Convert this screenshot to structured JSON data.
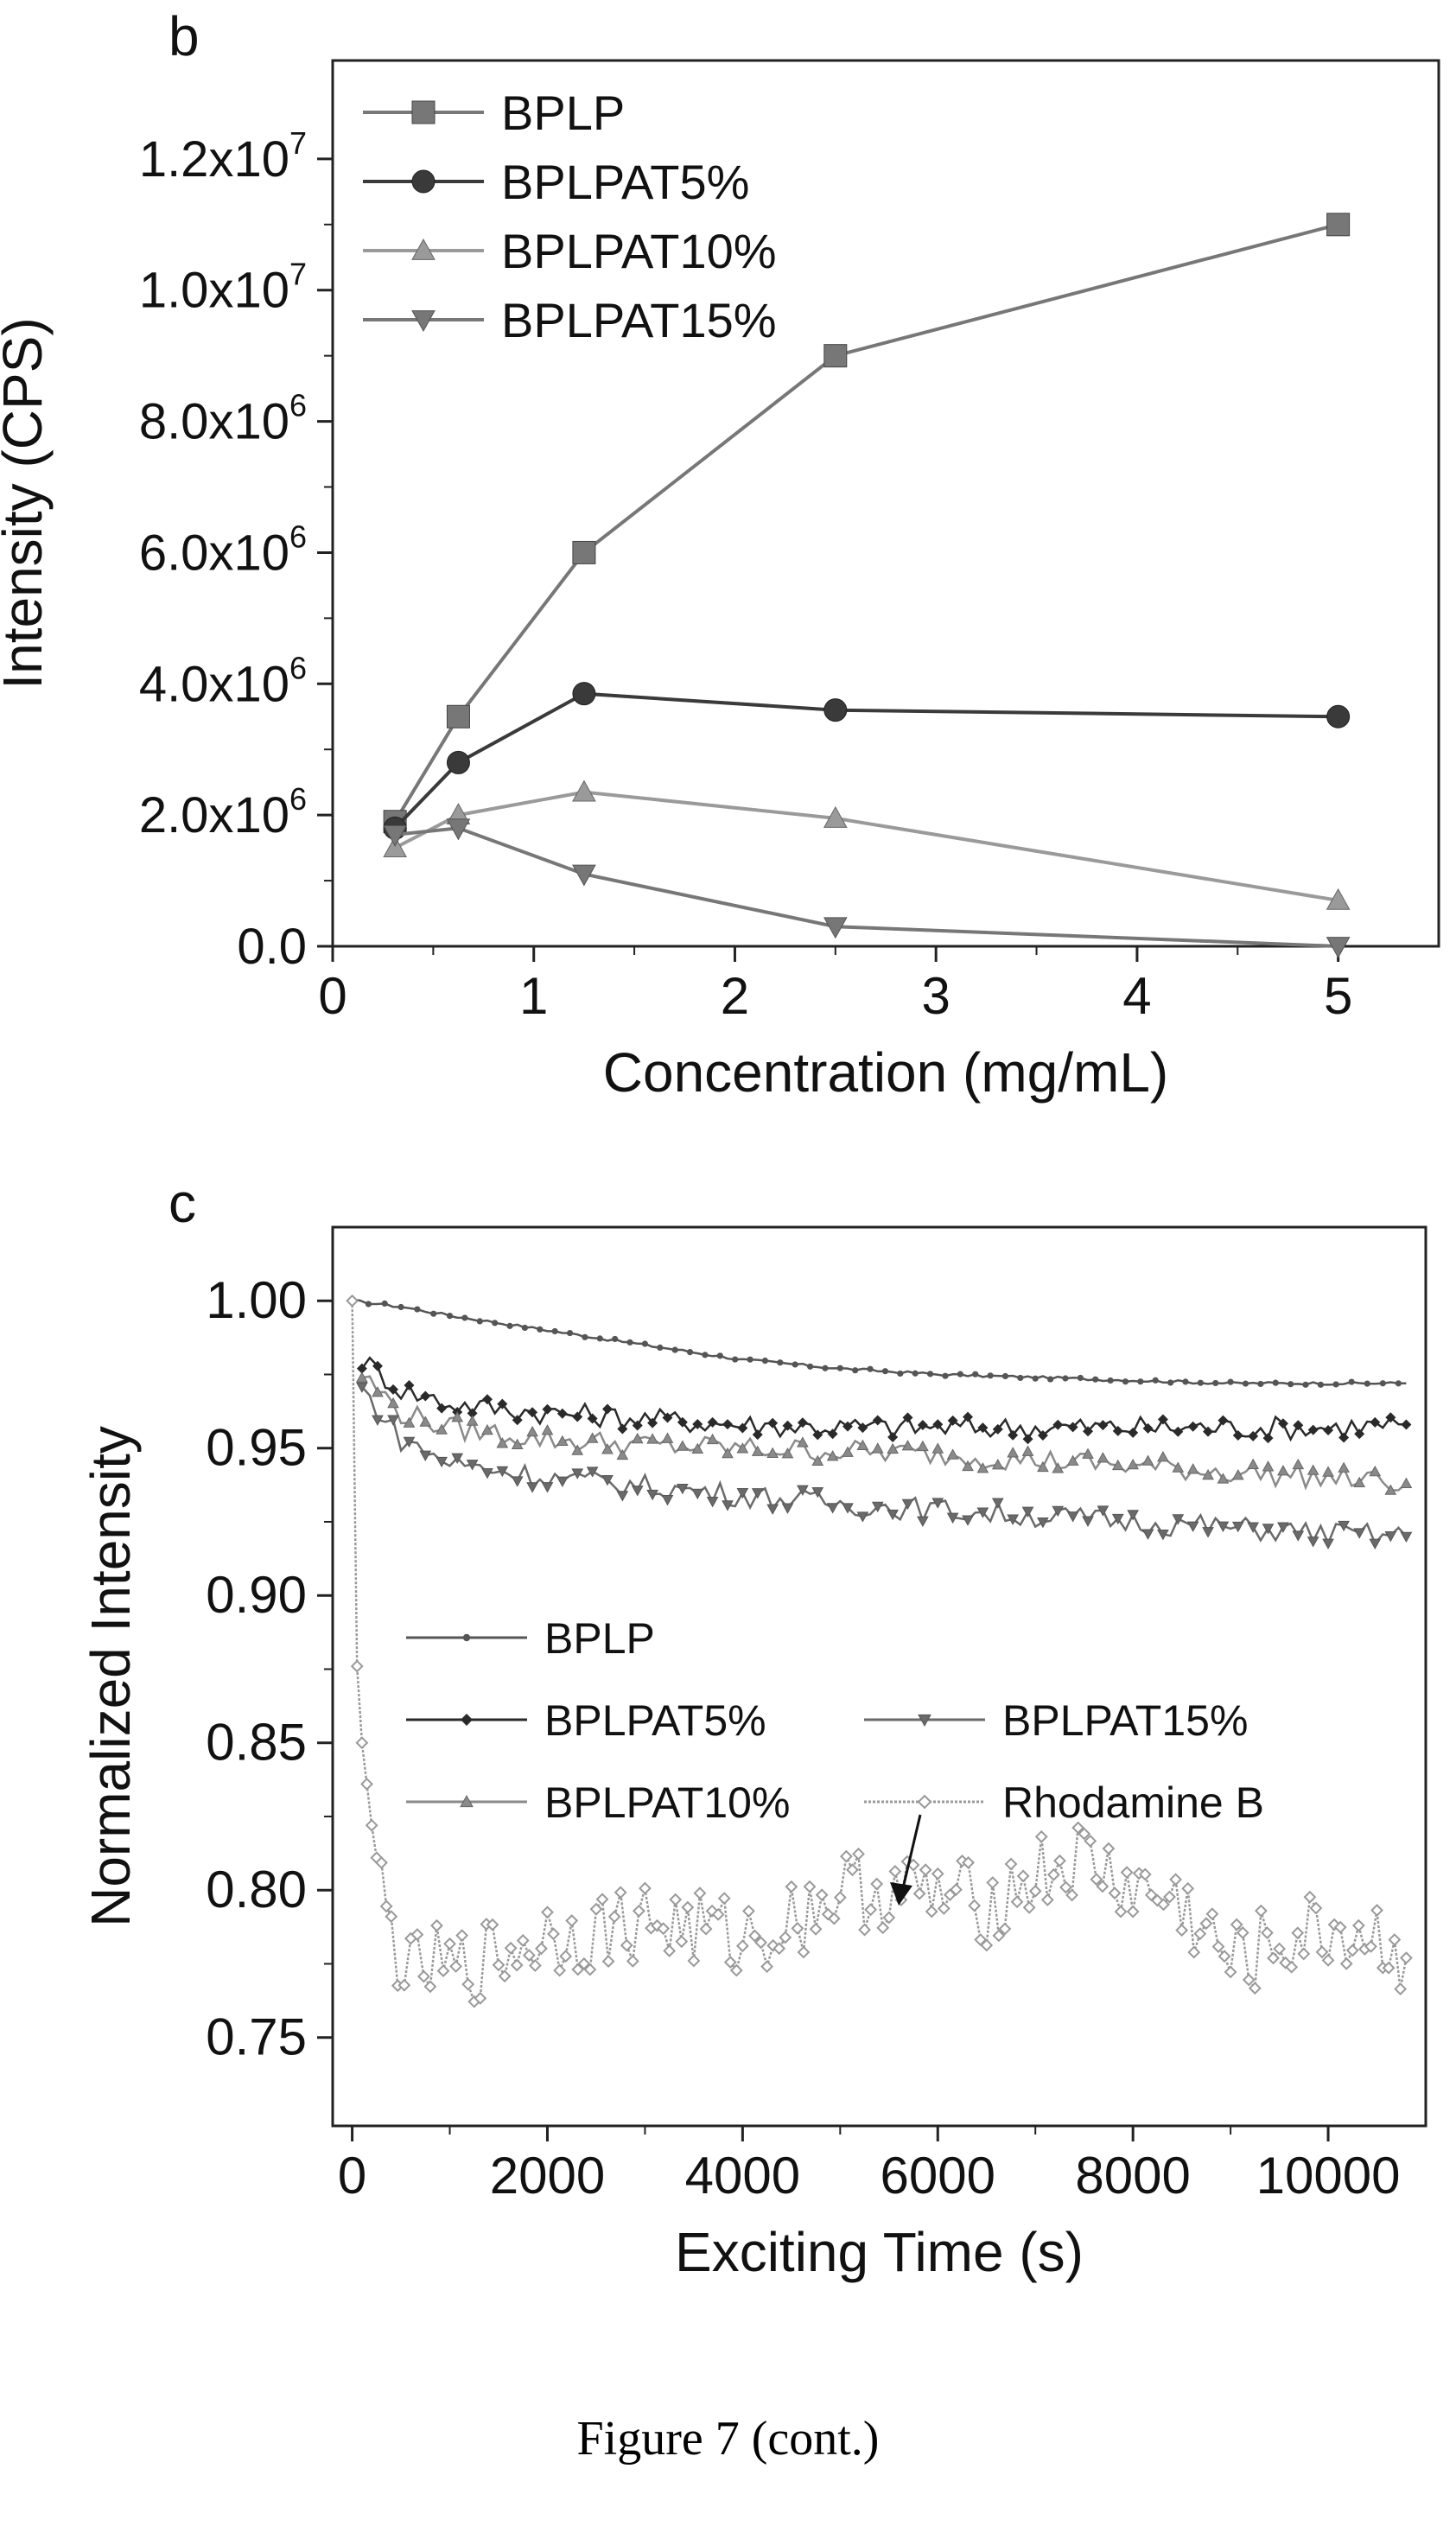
{
  "caption": "Figure 7 (cont.)",
  "chart_data": [
    {
      "type": "line",
      "panel_label": "b",
      "xlabel": "Concentration (mg/mL)",
      "ylabel": "Intensity (CPS)",
      "xlim": [
        0,
        5.5
      ],
      "ylim": [
        0,
        13500000
      ],
      "x_ticks": [
        0,
        1,
        2,
        3,
        4,
        5
      ],
      "x_tick_labels": [
        "0",
        "1",
        "2",
        "3",
        "4",
        "5"
      ],
      "y_ticks": [
        0,
        2000000,
        4000000,
        6000000,
        8000000,
        10000000,
        12000000
      ],
      "y_tick_labels": [
        {
          "mantissa": "0.0",
          "exp": ""
        },
        {
          "mantissa": "2.0x10",
          "exp": "6"
        },
        {
          "mantissa": "4.0x10",
          "exp": "6"
        },
        {
          "mantissa": "6.0x10",
          "exp": "6"
        },
        {
          "mantissa": "8.0x10",
          "exp": "6"
        },
        {
          "mantissa": "1.0x10",
          "exp": "7"
        },
        {
          "mantissa": "1.2x10",
          "exp": "7"
        }
      ],
      "grid": false,
      "legend_position": "top-left",
      "series": [
        {
          "name": "BPLP",
          "marker": "square",
          "color": "#777777",
          "x": [
            0.31,
            0.625,
            1.25,
            2.5,
            5
          ],
          "y": [
            1900000,
            3500000,
            6000000,
            9000000,
            11000000
          ]
        },
        {
          "name": "BPLPAT5%",
          "marker": "circle",
          "color": "#3a3a3a",
          "x": [
            0.31,
            0.625,
            1.25,
            2.5,
            5
          ],
          "y": [
            1800000,
            2800000,
            3850000,
            3600000,
            3500000
          ]
        },
        {
          "name": "BPLPAT10%",
          "marker": "triangle-up",
          "color": "#9a9a9a",
          "x": [
            0.31,
            0.625,
            1.25,
            2.5,
            5
          ],
          "y": [
            1500000,
            2000000,
            2350000,
            1950000,
            700000
          ]
        },
        {
          "name": "BPLPAT15%",
          "marker": "triangle-down",
          "color": "#777777",
          "x": [
            0.31,
            0.625,
            1.25,
            2.5,
            5
          ],
          "y": [
            1700000,
            1800000,
            1100000,
            300000,
            0
          ]
        }
      ]
    },
    {
      "type": "line",
      "panel_label": "c",
      "xlabel": "Exciting Time (s)",
      "ylabel": "Normalized Intensity",
      "xlim": [
        -200,
        11000
      ],
      "ylim": [
        0.72,
        1.025
      ],
      "x_ticks": [
        0,
        2000,
        4000,
        6000,
        8000,
        10000
      ],
      "x_tick_labels": [
        "0",
        "2000",
        "4000",
        "6000",
        "8000",
        "10000"
      ],
      "y_ticks": [
        0.75,
        0.8,
        0.85,
        0.9,
        0.95,
        1.0
      ],
      "y_tick_labels": [
        "0.75",
        "0.80",
        "0.85",
        "0.90",
        "0.95",
        "1.00"
      ],
      "grid": false,
      "legend_position": "center",
      "annotation": "arrow pointing to Rhodamine B trace",
      "series": [
        {
          "name": "BPLP",
          "marker": "small-dot",
          "color": "#555555",
          "x": [
            0,
            500,
            1000,
            2000,
            3000,
            4000,
            5000,
            6000,
            7000,
            8000,
            9000,
            10000,
            10800
          ],
          "y": [
            1.0,
            0.998,
            0.995,
            0.99,
            0.985,
            0.98,
            0.977,
            0.975,
            0.974,
            0.973,
            0.972,
            0.972,
            0.972
          ]
        },
        {
          "name": "BPLPAT5%",
          "marker": "diamond-dot",
          "color": "#2a2a2a",
          "x": [
            100,
            500,
            1000,
            2000,
            3000,
            4000,
            5000,
            6000,
            7000,
            8000,
            9000,
            10000,
            10800
          ],
          "y": [
            0.98,
            0.97,
            0.965,
            0.962,
            0.96,
            0.958,
            0.957,
            0.957,
            0.957,
            0.957,
            0.957,
            0.957,
            0.958
          ]
        },
        {
          "name": "BPLPAT10%",
          "marker": "triangle-up",
          "color": "#8a8a8a",
          "x": [
            100,
            500,
            1000,
            2000,
            3000,
            4000,
            5000,
            6000,
            7000,
            8000,
            9000,
            10000,
            10800
          ],
          "y": [
            0.975,
            0.962,
            0.957,
            0.953,
            0.951,
            0.95,
            0.949,
            0.948,
            0.946,
            0.944,
            0.942,
            0.94,
            0.938
          ]
        },
        {
          "name": "BPLPAT15%",
          "marker": "triangle-down",
          "color": "#6a6a6a",
          "x": [
            100,
            500,
            1000,
            2000,
            3000,
            4000,
            5000,
            6000,
            7000,
            8000,
            9000,
            10000,
            10800
          ],
          "y": [
            0.97,
            0.953,
            0.945,
            0.94,
            0.937,
            0.934,
            0.931,
            0.929,
            0.927,
            0.925,
            0.923,
            0.921,
            0.92
          ]
        },
        {
          "name": "Rhodamine B",
          "marker": "open-diamond",
          "color": "#999999",
          "x": [
            0,
            50,
            100,
            200,
            300,
            400,
            600,
            800,
            1000,
            1500,
            2000,
            2500,
            3000,
            3500,
            4000,
            4500,
            5000,
            5500,
            6000,
            6500,
            7000,
            7500,
            8000,
            8500,
            9000,
            9500,
            10000,
            10500,
            10800
          ],
          "y": [
            1.0,
            0.876,
            0.85,
            0.822,
            0.8,
            0.785,
            0.77,
            0.775,
            0.772,
            0.778,
            0.785,
            0.786,
            0.79,
            0.787,
            0.783,
            0.79,
            0.8,
            0.8,
            0.798,
            0.795,
            0.805,
            0.81,
            0.8,
            0.795,
            0.775,
            0.782,
            0.786,
            0.784,
            0.777
          ]
        }
      ]
    }
  ]
}
